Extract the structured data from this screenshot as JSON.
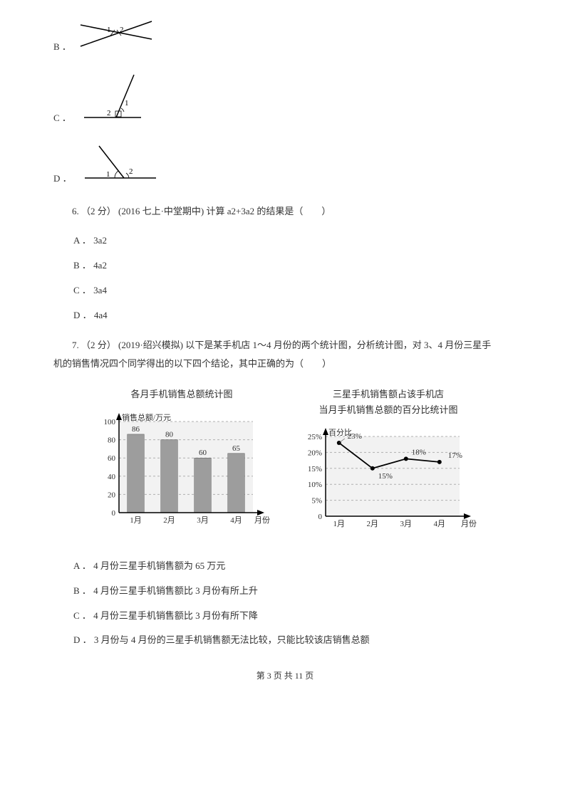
{
  "options_diagrams": {
    "B": {
      "label": "B ．"
    },
    "C": {
      "label": "C ．"
    },
    "D": {
      "label": "D ．"
    }
  },
  "q6": {
    "text": "6.  （2 分） (2016 七上·中堂期中)  计算 a2+3a2 的结果是（　　）",
    "options": {
      "A": "A ． 3a2",
      "B": "B ． 4a2",
      "C": "C ． 3a4",
      "D": "D ． 4a4"
    }
  },
  "q7": {
    "text_line1": "7.  （2 分） (2019·绍兴模拟)  以下是某手机店 1～4 月份的两个统计图，分析统计图，对 3、4 月份三星手",
    "text_line2": "机的销售情况四个同学得出的以下四个结论，其中正确的为（　　）",
    "options": {
      "A": "A ． 4 月份三星手机销售额为 65 万元",
      "B": "B ． 4 月份三星手机销售额比 3 月份有所上升",
      "C": "C ． 4 月份三星手机销售额比 3 月份有所下降",
      "D": "D ． 3 月份与 4 月份的三星手机销售额无法比较，只能比较该店销售总额"
    }
  },
  "bar_chart": {
    "title": "各月手机销售总额统计图",
    "y_label": "销售总额/万元",
    "x_label": "月份",
    "y_ticks": [
      "0",
      "20",
      "40",
      "60",
      "80",
      "100"
    ],
    "categories": [
      "1月",
      "2月",
      "3月",
      "4月"
    ],
    "values": [
      86,
      80,
      60,
      65
    ],
    "value_labels": [
      "86",
      "80",
      "60",
      "65"
    ],
    "bar_color": "#9d9d9d",
    "bg_color": "#f2f2f2",
    "axis_color": "#000000",
    "grid_color": "#b0b0b0",
    "font_color": "#303030",
    "ylim": [
      0,
      100
    ]
  },
  "line_chart": {
    "title_line1": "三星手机销售额占该手机店",
    "title_line2": "当月手机销售总额的百分比统计图",
    "y_label": "百分比",
    "x_label": "月份",
    "y_ticks": [
      "0",
      "5%",
      "10%",
      "15%",
      "20%",
      "25%"
    ],
    "categories": [
      "1月",
      "2月",
      "3月",
      "4月"
    ],
    "values": [
      23,
      15,
      18,
      17
    ],
    "value_labels": [
      "23%",
      "15%",
      "18%",
      "17%"
    ],
    "line_color": "#000000",
    "marker_color": "#000000",
    "bg_color": "#f2f2f2",
    "axis_color": "#000000",
    "grid_color": "#b0b0b0",
    "font_color": "#303030",
    "ylim": [
      0,
      25
    ]
  },
  "footer": "第 3 页 共 11 页"
}
